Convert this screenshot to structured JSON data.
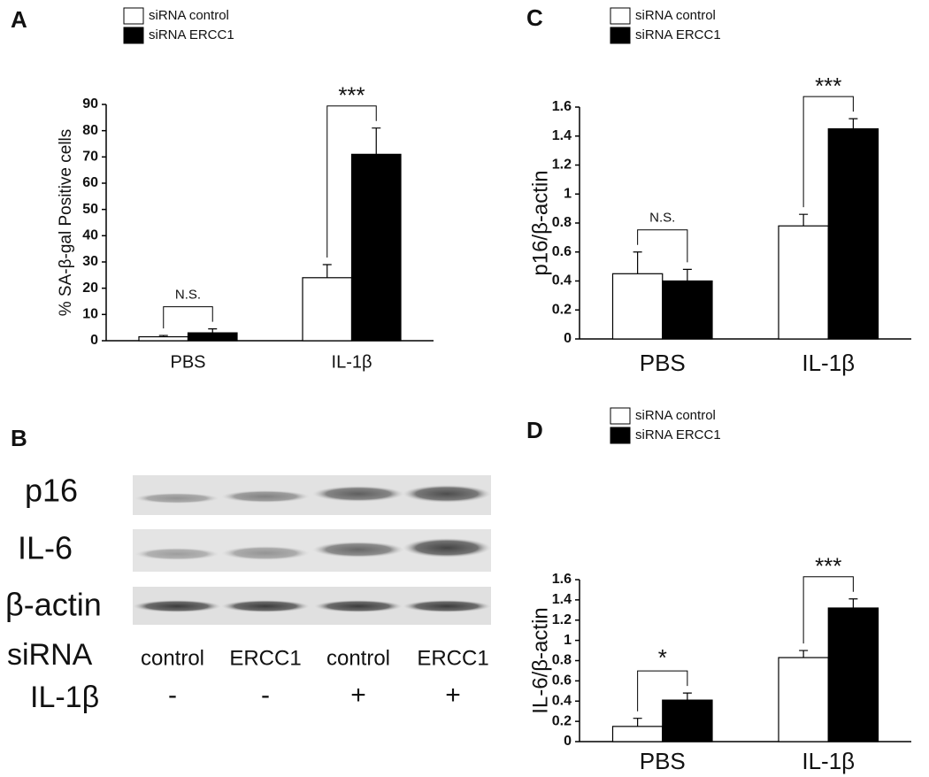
{
  "chart_data": [
    {
      "type": "bar",
      "panel": "A",
      "ylabel": "% SA-β-gal Positive cells",
      "categories": [
        "PBS",
        "IL-1β"
      ],
      "series": [
        {
          "name": "siRNA control",
          "color": "#ffffff",
          "values": [
            1.5,
            24
          ],
          "errors": [
            0.5,
            5
          ]
        },
        {
          "name": "siRNA ERCC1",
          "color": "#000000",
          "values": [
            3,
            71
          ],
          "errors": [
            1.5,
            10
          ]
        }
      ],
      "ylim": [
        0,
        90
      ],
      "yticks": [
        0,
        10,
        20,
        30,
        40,
        50,
        60,
        70,
        80,
        90
      ],
      "annotations": [
        "N.S.",
        "***"
      ]
    },
    {
      "type": "bar",
      "panel": "C",
      "ylabel": "p16/β-actin",
      "categories": [
        "PBS",
        "IL-1β"
      ],
      "series": [
        {
          "name": "siRNA control",
          "color": "#ffffff",
          "values": [
            0.45,
            0.78
          ],
          "errors": [
            0.15,
            0.08
          ]
        },
        {
          "name": "siRNA ERCC1",
          "color": "#000000",
          "values": [
            0.4,
            1.45
          ],
          "errors": [
            0.08,
            0.07
          ]
        }
      ],
      "ylim": [
        0,
        1.6
      ],
      "yticks": [
        0,
        0.2,
        0.4,
        0.6,
        0.8,
        1,
        1.2,
        1.4,
        1.6
      ],
      "annotations": [
        "N.S.",
        "***"
      ]
    },
    {
      "type": "bar",
      "panel": "D",
      "ylabel": "IL-6/β-actin",
      "categories": [
        "PBS",
        "IL-1β"
      ],
      "series": [
        {
          "name": "siRNA control",
          "color": "#ffffff",
          "values": [
            0.15,
            0.83
          ],
          "errors": [
            0.08,
            0.07
          ]
        },
        {
          "name": "siRNA ERCC1",
          "color": "#000000",
          "values": [
            0.41,
            1.32
          ],
          "errors": [
            0.07,
            0.09
          ]
        }
      ],
      "ylim": [
        0,
        1.6
      ],
      "yticks": [
        0,
        0.2,
        0.4,
        0.6,
        0.8,
        1,
        1.2,
        1.4,
        1.6
      ],
      "annotations": [
        "*",
        "***"
      ]
    }
  ],
  "blot": {
    "panel": "B",
    "rows": [
      "p16",
      "IL-6",
      "β-actin"
    ],
    "sirna_label": "siRNA",
    "lanes": [
      "control",
      "ERCC1",
      "control",
      "ERCC1"
    ],
    "treatment_label": "IL-1β",
    "treatment": [
      "-",
      "-",
      "+",
      "+"
    ]
  }
}
